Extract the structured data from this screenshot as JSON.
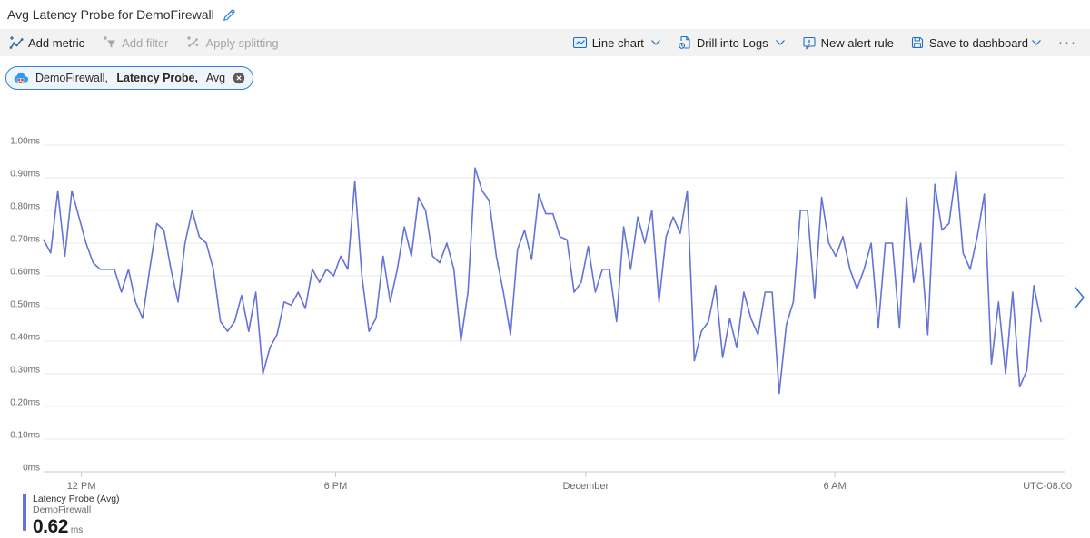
{
  "window": {
    "title": "Avg Latency Probe for DemoFirewall"
  },
  "toolbar": {
    "left": [
      {
        "label": "Add metric",
        "icon": "add-metric-icon",
        "enabled": true
      },
      {
        "label": "Add filter",
        "icon": "add-filter-icon",
        "enabled": false
      },
      {
        "label": "Apply splitting",
        "icon": "apply-splitting-icon",
        "enabled": false
      }
    ],
    "right": [
      {
        "label": "Line chart",
        "icon": "line-chart-icon",
        "chevron": true
      },
      {
        "label": "Drill into Logs",
        "icon": "drill-into-logs-icon",
        "chevron": true
      },
      {
        "label": "New alert rule",
        "icon": "new-alert-rule-icon",
        "chevron": false
      },
      {
        "label": "Save to dashboard",
        "icon": "save-icon",
        "chevron": true
      },
      {
        "label": "···",
        "icon": "more-icon",
        "chevron": false
      }
    ]
  },
  "metric_chip": {
    "resource": "DemoFirewall, ",
    "metric": "Latency Probe,",
    "aggregation": " Avg",
    "icon": "firewall-icon",
    "close_icon": "close-icon"
  },
  "legend": {
    "series_label": "Latency Probe (Avg)",
    "resource_label": "DemoFirewall",
    "value": "0.62",
    "unit": "ms"
  },
  "colors": {
    "accent": "#0078d4",
    "series_line": "#6373d9",
    "legend_bar": "#6373d9",
    "grid": "#e8e8e8",
    "axis_line": "#c9c9c9",
    "axis_text": "#6b6b6b",
    "toolbar_bg": "#f2f2f2",
    "disabled_text": "#a7a5a3",
    "chip_bg": "#eef5fc",
    "chip_border": "#2f7ed7"
  },
  "chart_data": {
    "type": "line",
    "title": "Avg Latency Probe for DemoFirewall",
    "unit": "ms",
    "grid": true,
    "legend_position": "bottom-left",
    "ylim": [
      0,
      1
    ],
    "y_ticks": [
      {
        "label": "1.00ms",
        "value": 1.0
      },
      {
        "label": "0.90ms",
        "value": 0.9
      },
      {
        "label": "0.80ms",
        "value": 0.8
      },
      {
        "label": "0.70ms",
        "value": 0.7
      },
      {
        "label": "0.60ms",
        "value": 0.6
      },
      {
        "label": "0.50ms",
        "value": 0.5
      },
      {
        "label": "0.40ms",
        "value": 0.4
      },
      {
        "label": "0.30ms",
        "value": 0.3
      },
      {
        "label": "0.20ms",
        "value": 0.2
      },
      {
        "label": "0.10ms",
        "value": 0.1
      },
      {
        "label": "0ms",
        "value": 0.0
      }
    ],
    "x_ticks": [
      {
        "label": "12 PM",
        "pos": 0.037
      },
      {
        "label": "6 PM",
        "pos": 0.286
      },
      {
        "label": "December",
        "pos": 0.531
      },
      {
        "label": "6 AM",
        "pos": 0.775
      }
    ],
    "x_axis_note": "UTC-08:00",
    "series": [
      {
        "name": "Latency Probe (Avg)",
        "resource": "DemoFirewall",
        "color": "#6373d9",
        "values": [
          0.71,
          0.67,
          0.86,
          0.66,
          0.86,
          0.78,
          0.7,
          0.64,
          0.62,
          0.62,
          0.62,
          0.55,
          0.62,
          0.52,
          0.47,
          0.62,
          0.76,
          0.74,
          0.62,
          0.52,
          0.7,
          0.8,
          0.72,
          0.7,
          0.62,
          0.46,
          0.43,
          0.46,
          0.54,
          0.43,
          0.55,
          0.3,
          0.38,
          0.42,
          0.52,
          0.51,
          0.55,
          0.5,
          0.62,
          0.58,
          0.62,
          0.6,
          0.66,
          0.62,
          0.89,
          0.6,
          0.43,
          0.47,
          0.66,
          0.52,
          0.62,
          0.75,
          0.66,
          0.84,
          0.8,
          0.66,
          0.64,
          0.7,
          0.62,
          0.4,
          0.55,
          0.93,
          0.86,
          0.83,
          0.66,
          0.55,
          0.42,
          0.68,
          0.74,
          0.65,
          0.85,
          0.79,
          0.79,
          0.72,
          0.71,
          0.55,
          0.58,
          0.69,
          0.55,
          0.62,
          0.62,
          0.46,
          0.75,
          0.62,
          0.78,
          0.7,
          0.8,
          0.52,
          0.72,
          0.78,
          0.73,
          0.86,
          0.34,
          0.43,
          0.46,
          0.57,
          0.35,
          0.47,
          0.38,
          0.55,
          0.47,
          0.42,
          0.55,
          0.55,
          0.24,
          0.45,
          0.52,
          0.8,
          0.8,
          0.53,
          0.84,
          0.7,
          0.66,
          0.72,
          0.62,
          0.56,
          0.62,
          0.7,
          0.44,
          0.7,
          0.7,
          0.44,
          0.84,
          0.58,
          0.7,
          0.42,
          0.88,
          0.74,
          0.76,
          0.92,
          0.67,
          0.62,
          0.72,
          0.85,
          0.33,
          0.52,
          0.3,
          0.55,
          0.26,
          0.31,
          0.57,
          0.46
        ]
      }
    ]
  }
}
